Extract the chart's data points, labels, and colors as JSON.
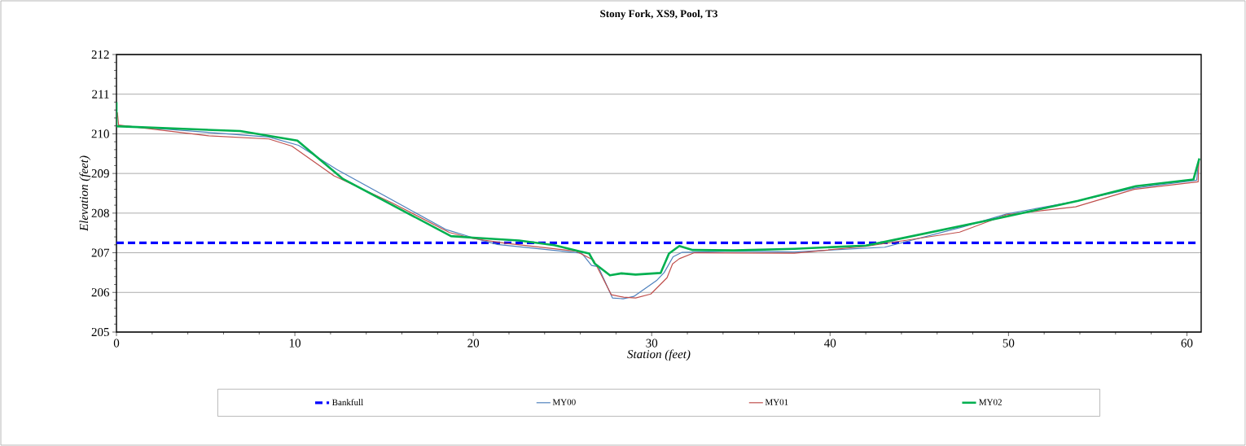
{
  "chart_data": {
    "type": "line",
    "title": "Stony Fork, XS9, Pool, T3",
    "xlabel": "Station (feet)",
    "ylabel": "Elevation (feet)",
    "xlim": [
      0,
      60.8
    ],
    "ylim": [
      205,
      212
    ],
    "xticks": [
      0,
      10,
      20,
      30,
      40,
      50,
      60
    ],
    "yticks": [
      205,
      206,
      207,
      208,
      209,
      210,
      211,
      212
    ],
    "grid": "y",
    "legend": "bottom",
    "series": [
      {
        "name": "Bankfull",
        "color": "#0000ff",
        "line_style": "dashed",
        "x": [
          0,
          60.5
        ],
        "values": [
          207.25,
          207.25
        ]
      },
      {
        "name": "MY00",
        "color": "#4f81bd",
        "line_style": "solid",
        "x": [
          0,
          0,
          8.54,
          10.2,
          12.35,
          18.45,
          19.97,
          21.35,
          26.08,
          26.63,
          27.0,
          27.8,
          28.4,
          29.0,
          30.3,
          30.7,
          31.2,
          31.7,
          34.6,
          38.0,
          43.06,
          47.43,
          49.9,
          53.9,
          57.05,
          60.55,
          60.65
        ],
        "values": [
          210.6,
          210.21,
          209.92,
          209.71,
          209.1,
          207.59,
          207.38,
          207.21,
          206.99,
          206.68,
          206.65,
          205.86,
          205.84,
          205.9,
          206.31,
          206.5,
          206.9,
          207.01,
          207.04,
          207.02,
          207.14,
          207.65,
          207.98,
          208.31,
          208.63,
          208.83,
          209.3
        ]
      },
      {
        "name": "MY01",
        "color": "#c0504d",
        "line_style": "solid",
        "x": [
          0.05,
          0.12,
          5.18,
          8.54,
          9.83,
          12.19,
          15.4,
          18.67,
          19.97,
          21.8,
          25.76,
          26.75,
          27.74,
          28.43,
          29.1,
          29.95,
          30.86,
          31.17,
          31.55,
          32.39,
          38.0,
          42.0,
          47.26,
          49.9,
          53.76,
          57.05,
          60.63,
          60.68
        ],
        "values": [
          210.54,
          210.22,
          209.95,
          209.87,
          209.69,
          208.94,
          208.27,
          207.51,
          207.36,
          207.24,
          207.04,
          206.81,
          205.94,
          205.88,
          205.86,
          205.96,
          206.37,
          206.72,
          206.85,
          207.0,
          206.99,
          207.16,
          207.52,
          207.96,
          208.16,
          208.6,
          208.79,
          209.35
        ]
      },
      {
        "name": "MY02",
        "color": "#00b050",
        "line_style": "solid",
        "x": [
          0,
          0,
          6.94,
          10.14,
          12.7,
          18.75,
          19.97,
          22.56,
          24.54,
          25.9,
          26.5,
          26.8,
          27.66,
          28.3,
          29.1,
          30.5,
          30.97,
          31.55,
          32.3,
          34.6,
          38.0,
          42.0,
          42.9,
          49.52,
          53.9,
          57.14,
          60.37,
          60.7
        ],
        "values": [
          210.8,
          210.19,
          210.07,
          209.83,
          208.86,
          207.42,
          207.38,
          207.31,
          207.19,
          207.04,
          206.98,
          206.73,
          206.43,
          206.48,
          206.45,
          206.49,
          206.98,
          207.17,
          207.07,
          207.06,
          207.1,
          207.18,
          207.26,
          207.88,
          208.31,
          208.68,
          208.85,
          209.38
        ]
      }
    ]
  }
}
